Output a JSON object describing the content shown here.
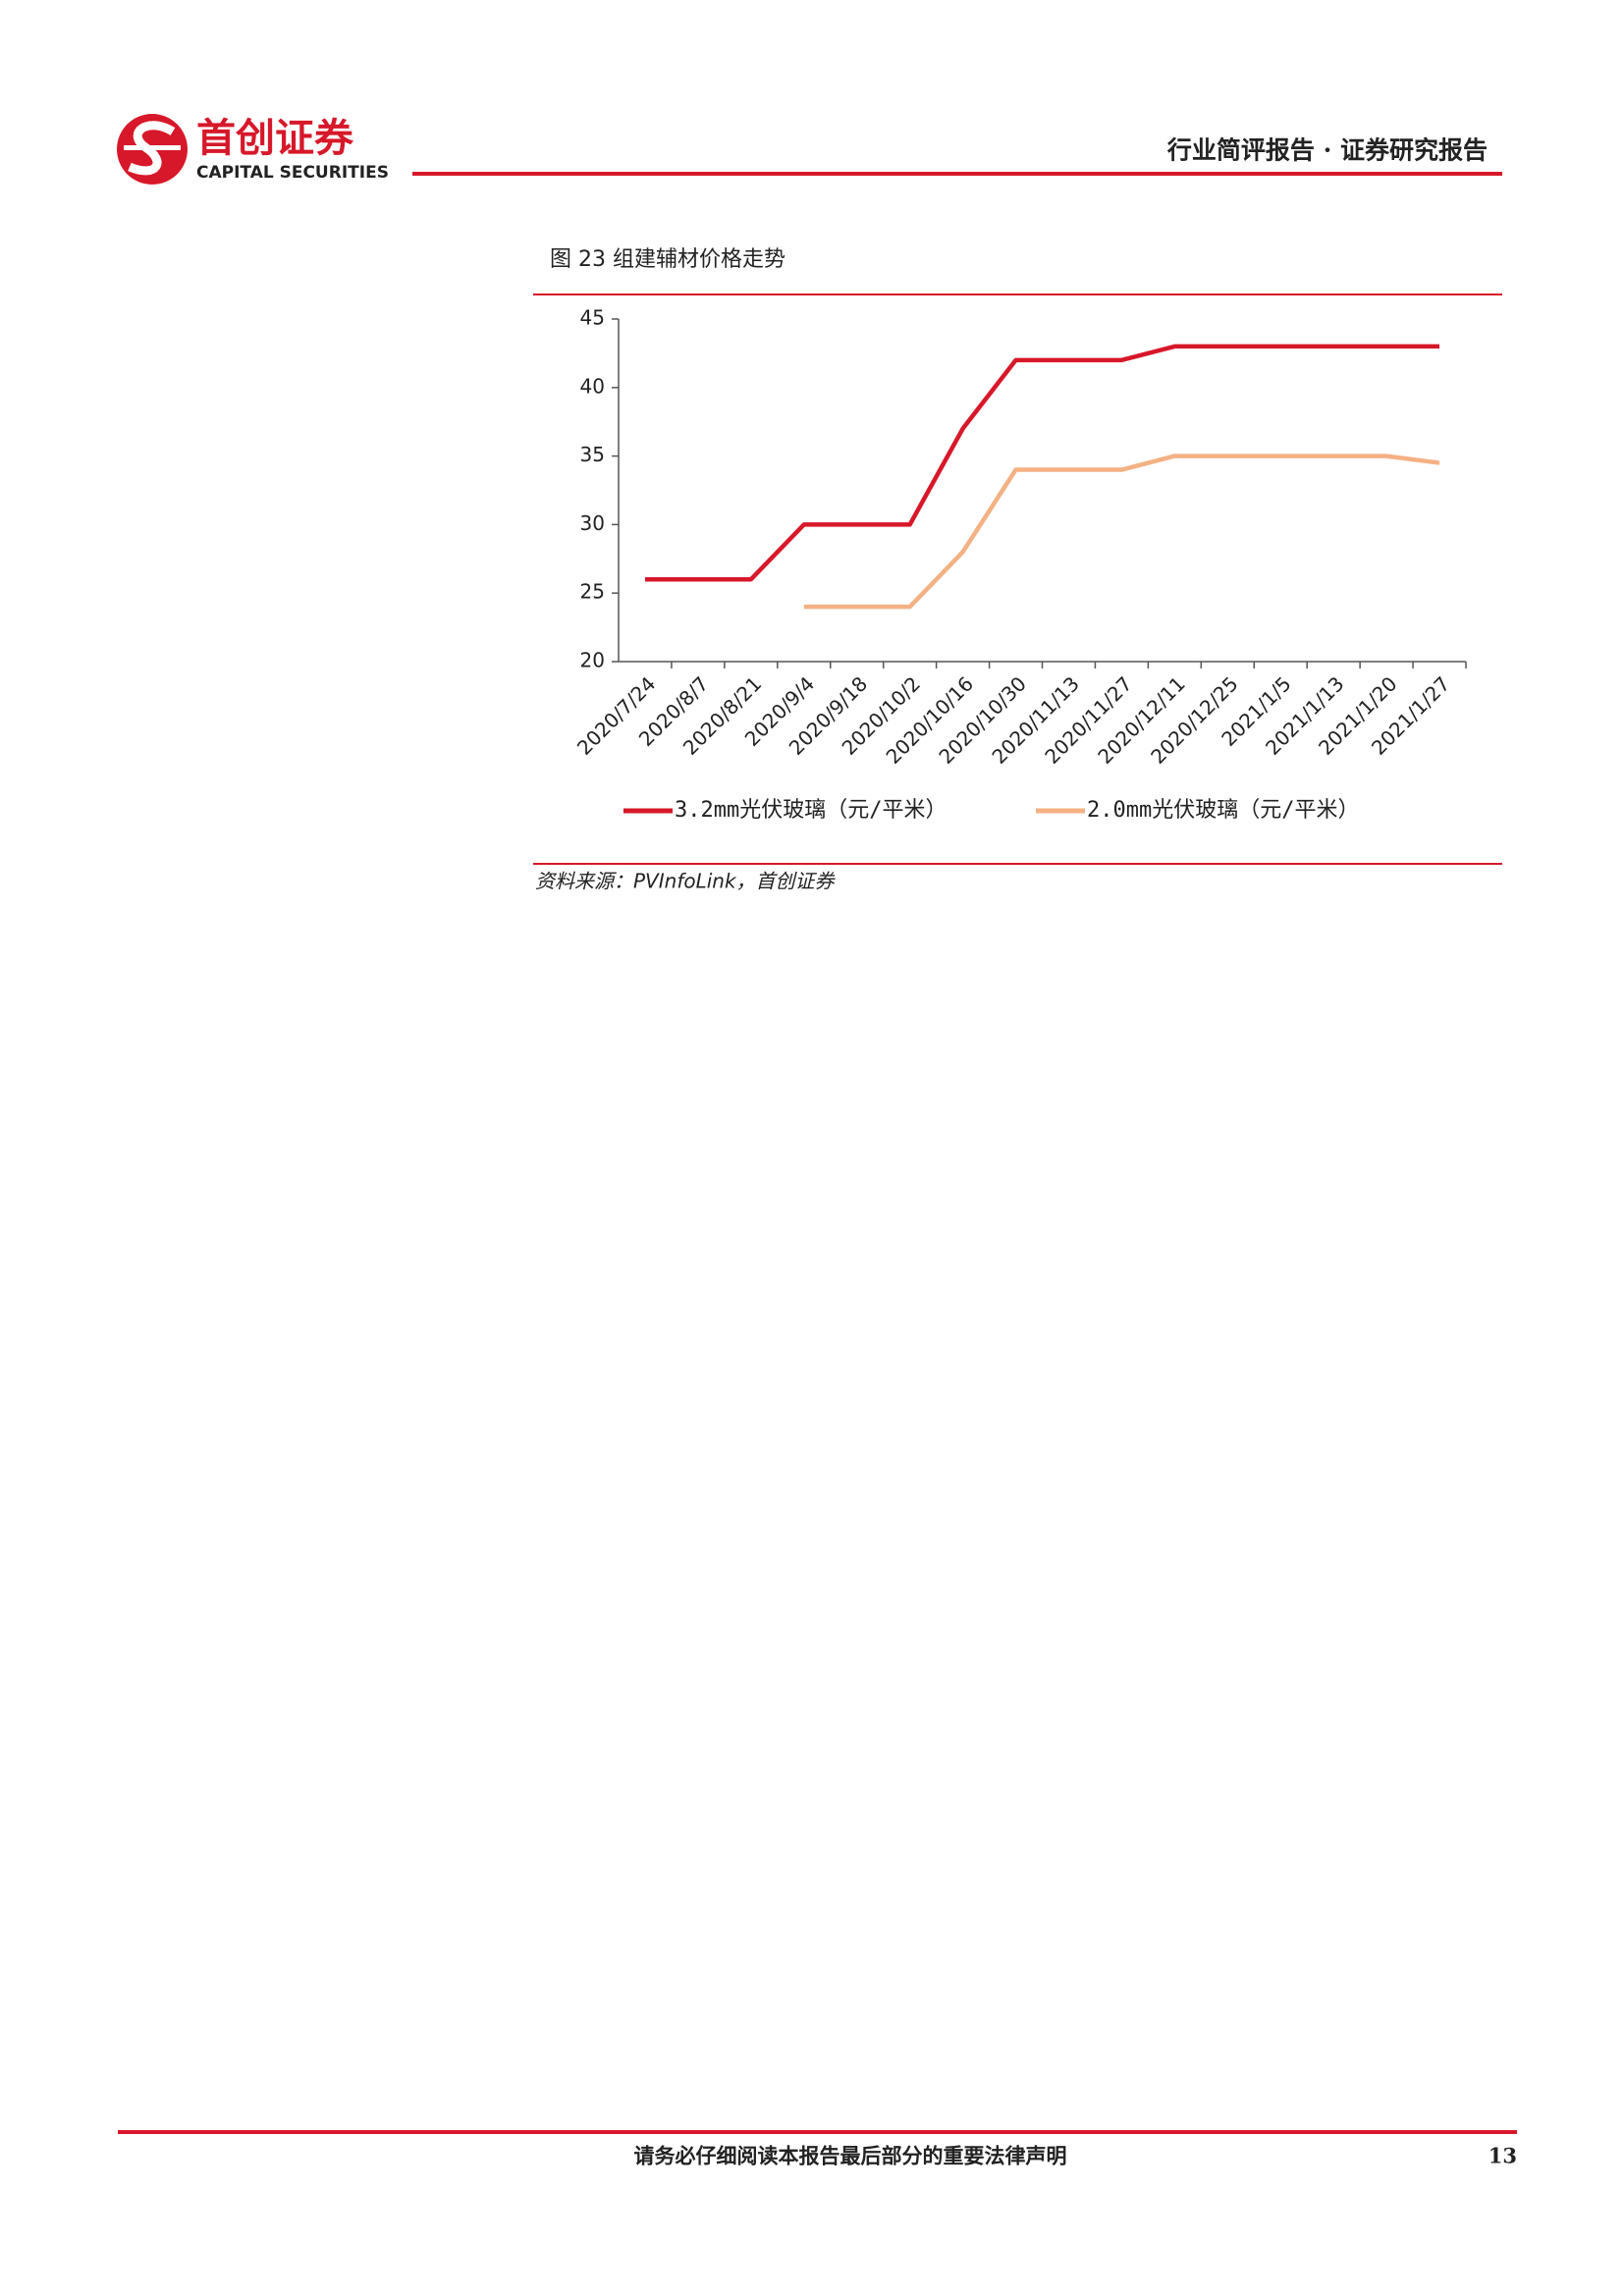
{
  "header": {
    "logo_cn": "首创证券",
    "logo_en": "CAPITAL SECURITIES",
    "report_type": "行业简评报告 · 证券研究报告"
  },
  "figure": {
    "title": "图 23 组建辅材价格走势",
    "source": "资料来源：PVInfoLink，首创证券"
  },
  "chart_data": {
    "type": "line",
    "categories": [
      "2020/7/24",
      "2020/8/7",
      "2020/8/21",
      "2020/9/4",
      "2020/9/18",
      "2020/10/2",
      "2020/10/16",
      "2020/10/30",
      "2020/11/13",
      "2020/11/27",
      "2020/12/11",
      "2020/12/25",
      "2021/1/5",
      "2021/1/13",
      "2021/1/20",
      "2021/1/27"
    ],
    "series": [
      {
        "name": "3.2mm光伏玻璃（元/平米）",
        "color": "#d7182a",
        "values": [
          26,
          26,
          26,
          30,
          30,
          30,
          37,
          42,
          42,
          42,
          43,
          43,
          43,
          43,
          43,
          43
        ]
      },
      {
        "name": "2.0mm光伏玻璃（元/平米）",
        "color": "#f4b183",
        "values": [
          null,
          null,
          null,
          24,
          24,
          24,
          28,
          34,
          34,
          34,
          35,
          35,
          35,
          35,
          35,
          34.5
        ]
      }
    ],
    "ylim": [
      20,
      45
    ],
    "yticks": [
      20,
      25,
      30,
      35,
      40,
      45
    ],
    "grid": false
  },
  "footer": {
    "notice": "请务必仔细阅读本报告最后部分的重要法律声明",
    "page": "13"
  }
}
